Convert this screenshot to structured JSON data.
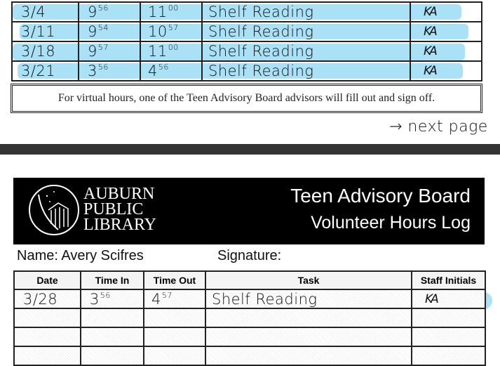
{
  "top_log": {
    "rows": [
      {
        "date": "3/4",
        "time_in": "9",
        "time_in_min": "56",
        "time_out": "11",
        "time_out_min": "00",
        "task": "Shelf Reading",
        "initials": "KA"
      },
      {
        "date": "3/11",
        "time_in": "9",
        "time_in_min": "54",
        "time_out": "10",
        "time_out_min": "57",
        "task": "Shelf Reading",
        "initials": "KA"
      },
      {
        "date": "3/18",
        "time_in": "9",
        "time_in_min": "57",
        "time_out": "11",
        "time_out_min": "00",
        "task": "Shelf Reading",
        "initials": "KA"
      },
      {
        "date": "3/21",
        "time_in": "3",
        "time_in_min": "56",
        "time_out": "4",
        "time_out_min": "56",
        "task": "Shelf Reading",
        "initials": "KA"
      }
    ],
    "notice": "For virtual hours, one of the Teen Advisory Board advisors will fill out and sign off.",
    "next_page_note": "→ next page"
  },
  "header": {
    "logo_lines": [
      "AUBURN",
      "PUBLIC",
      "LIBRARY"
    ],
    "title_line1": "Teen Advisory Board",
    "title_line2": "Volunteer Hours Log"
  },
  "form": {
    "name_label": "Name:",
    "name_value": "Avery Scifres",
    "signature_label": "Signature:"
  },
  "bottom_log": {
    "columns": [
      "Date",
      "Time In",
      "Time Out",
      "Task",
      "Staff Initials"
    ],
    "rows": [
      {
        "date": "3/28",
        "time_in": "3",
        "time_in_min": "56",
        "time_out": "4",
        "time_out_min": "57",
        "task": "Shelf Reading",
        "initials": "KA"
      }
    ]
  },
  "colors": {
    "highlight": "#a6dff5",
    "header_bg": "#000000",
    "divider": "#333333"
  }
}
